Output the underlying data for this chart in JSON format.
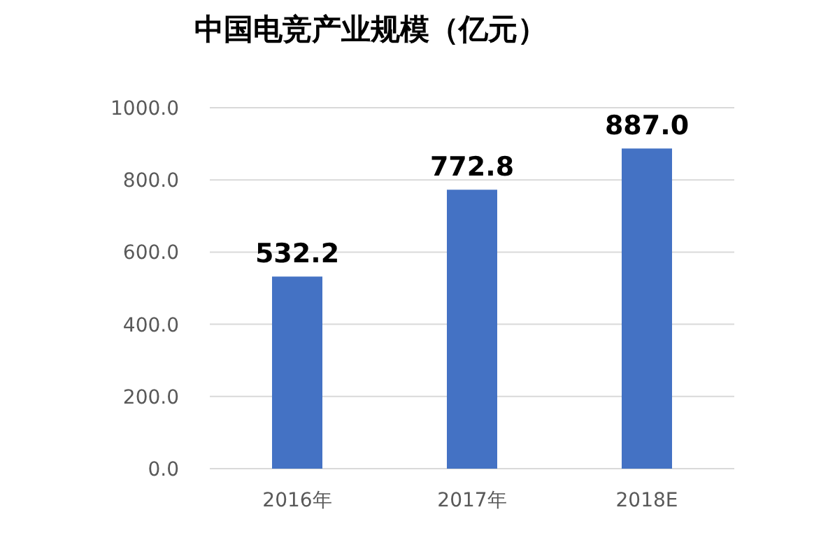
{
  "chart_data": {
    "type": "bar",
    "title": "中国电竞产业规模（亿元）",
    "categories": [
      "2016年",
      "2017年",
      "2018E"
    ],
    "values": [
      532.2,
      772.8,
      887.0
    ],
    "value_labels": [
      "532.2",
      "772.8",
      "887.0"
    ],
    "color": "#4472c4",
    "ylim": [
      0,
      1000
    ],
    "yticks": [
      {
        "value": 0,
        "label": "0.0"
      },
      {
        "value": 200,
        "label": "200.0"
      },
      {
        "value": 400,
        "label": "400.0"
      },
      {
        "value": 600,
        "label": "600.0"
      },
      {
        "value": 800,
        "label": "800.0"
      },
      {
        "value": 1000,
        "label": "1000.0"
      }
    ],
    "grid": "y"
  }
}
